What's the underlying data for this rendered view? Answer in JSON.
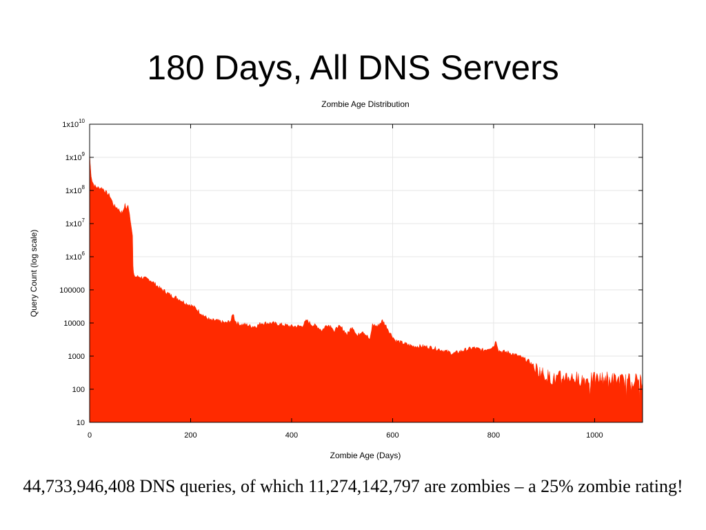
{
  "slide": {
    "title": "180 Days, All DNS Servers",
    "caption": "44,733,946,408 DNS queries, of which 11,274,142,797 are zombies – a 25% zombie rating!"
  },
  "chart_data": {
    "type": "area",
    "title": "Zombie Age Distribution",
    "xlabel": "Zombie Age (Days)",
    "ylabel": "Query Count (log scale)",
    "xlim": [
      0,
      1095
    ],
    "ylim": [
      10,
      10000000000
    ],
    "yscale": "log",
    "grid": true,
    "legend": "none",
    "fill_color": "#ff2a00",
    "x_ticks": [
      "0",
      "200",
      "400",
      "600",
      "800",
      "1000"
    ],
    "x_tick_values": [
      0,
      200,
      400,
      600,
      800,
      1000
    ],
    "y_ticks": [
      {
        "value": 10000000000,
        "base": "1x10",
        "exp": "10"
      },
      {
        "value": 1000000000,
        "base": "1x10",
        "exp": "9"
      },
      {
        "value": 100000000,
        "base": "1x10",
        "exp": "8"
      },
      {
        "value": 10000000,
        "base": "1x10",
        "exp": "7"
      },
      {
        "value": 1000000,
        "base": "1x10",
        "exp": "6"
      },
      {
        "value": 100000,
        "base": "100000",
        "exp": ""
      },
      {
        "value": 10000,
        "base": "10000",
        "exp": ""
      },
      {
        "value": 1000,
        "base": "1000",
        "exp": ""
      },
      {
        "value": 100,
        "base": "100",
        "exp": ""
      },
      {
        "value": 10,
        "base": "10",
        "exp": ""
      }
    ],
    "series": [
      {
        "x": [
          0,
          1,
          3,
          5,
          8,
          12,
          18,
          25,
          32,
          40,
          48,
          55,
          62,
          66,
          70,
          73,
          76,
          79,
          82,
          85,
          86,
          87,
          88,
          90,
          95,
          100,
          110,
          120,
          130,
          140,
          150,
          160,
          170,
          180,
          190,
          200,
          210,
          220,
          230,
          240,
          250,
          260,
          270,
          280,
          284,
          288,
          292,
          300,
          310,
          320,
          330,
          340,
          350,
          360,
          380,
          400,
          420,
          430,
          440,
          450,
          455,
          460,
          470,
          480,
          485,
          490,
          500,
          510,
          520,
          525,
          530,
          540,
          550,
          555,
          560,
          570,
          580,
          590,
          595,
          600,
          605,
          620,
          640,
          660,
          680,
          700,
          720,
          740,
          760,
          780,
          800,
          805,
          810,
          815,
          830,
          850,
          870,
          880,
          890,
          900,
          920,
          940,
          960,
          980,
          1000,
          1020,
          1040,
          1060,
          1080,
          1095
        ],
        "y": [
          1500000000,
          700000000,
          300000000,
          200000000,
          150000000,
          130000000,
          120000000,
          120000000,
          90000000,
          70000000,
          35000000,
          30000000,
          22000000,
          22000000,
          40000000,
          25000000,
          40000000,
          20000000,
          10000000,
          4000000,
          500000,
          300000,
          300000,
          250000,
          250000,
          250000,
          220000,
          200000,
          150000,
          110000,
          90000,
          70000,
          60000,
          50000,
          40000,
          35000,
          28000,
          20000,
          15000,
          12000,
          12000,
          11000,
          10000,
          12000,
          20000,
          12000,
          10000,
          9000,
          9000,
          8000,
          8000,
          10000,
          10000,
          10000,
          9000,
          8000,
          8000,
          12000,
          9000,
          8000,
          7000,
          6000,
          9000,
          8000,
          5000,
          8000,
          7000,
          4500,
          8000,
          6000,
          4000,
          6000,
          4000,
          3000,
          9000,
          8000,
          12000,
          7000,
          5000,
          4000,
          3000,
          2500,
          2000,
          2000,
          1800,
          1500,
          1200,
          1500,
          1800,
          1500,
          2000,
          3000,
          1500,
          1400,
          1300,
          1000,
          700,
          500,
          350,
          280,
          200,
          250,
          220,
          200,
          200,
          220,
          200,
          180,
          200,
          170
        ]
      }
    ]
  }
}
